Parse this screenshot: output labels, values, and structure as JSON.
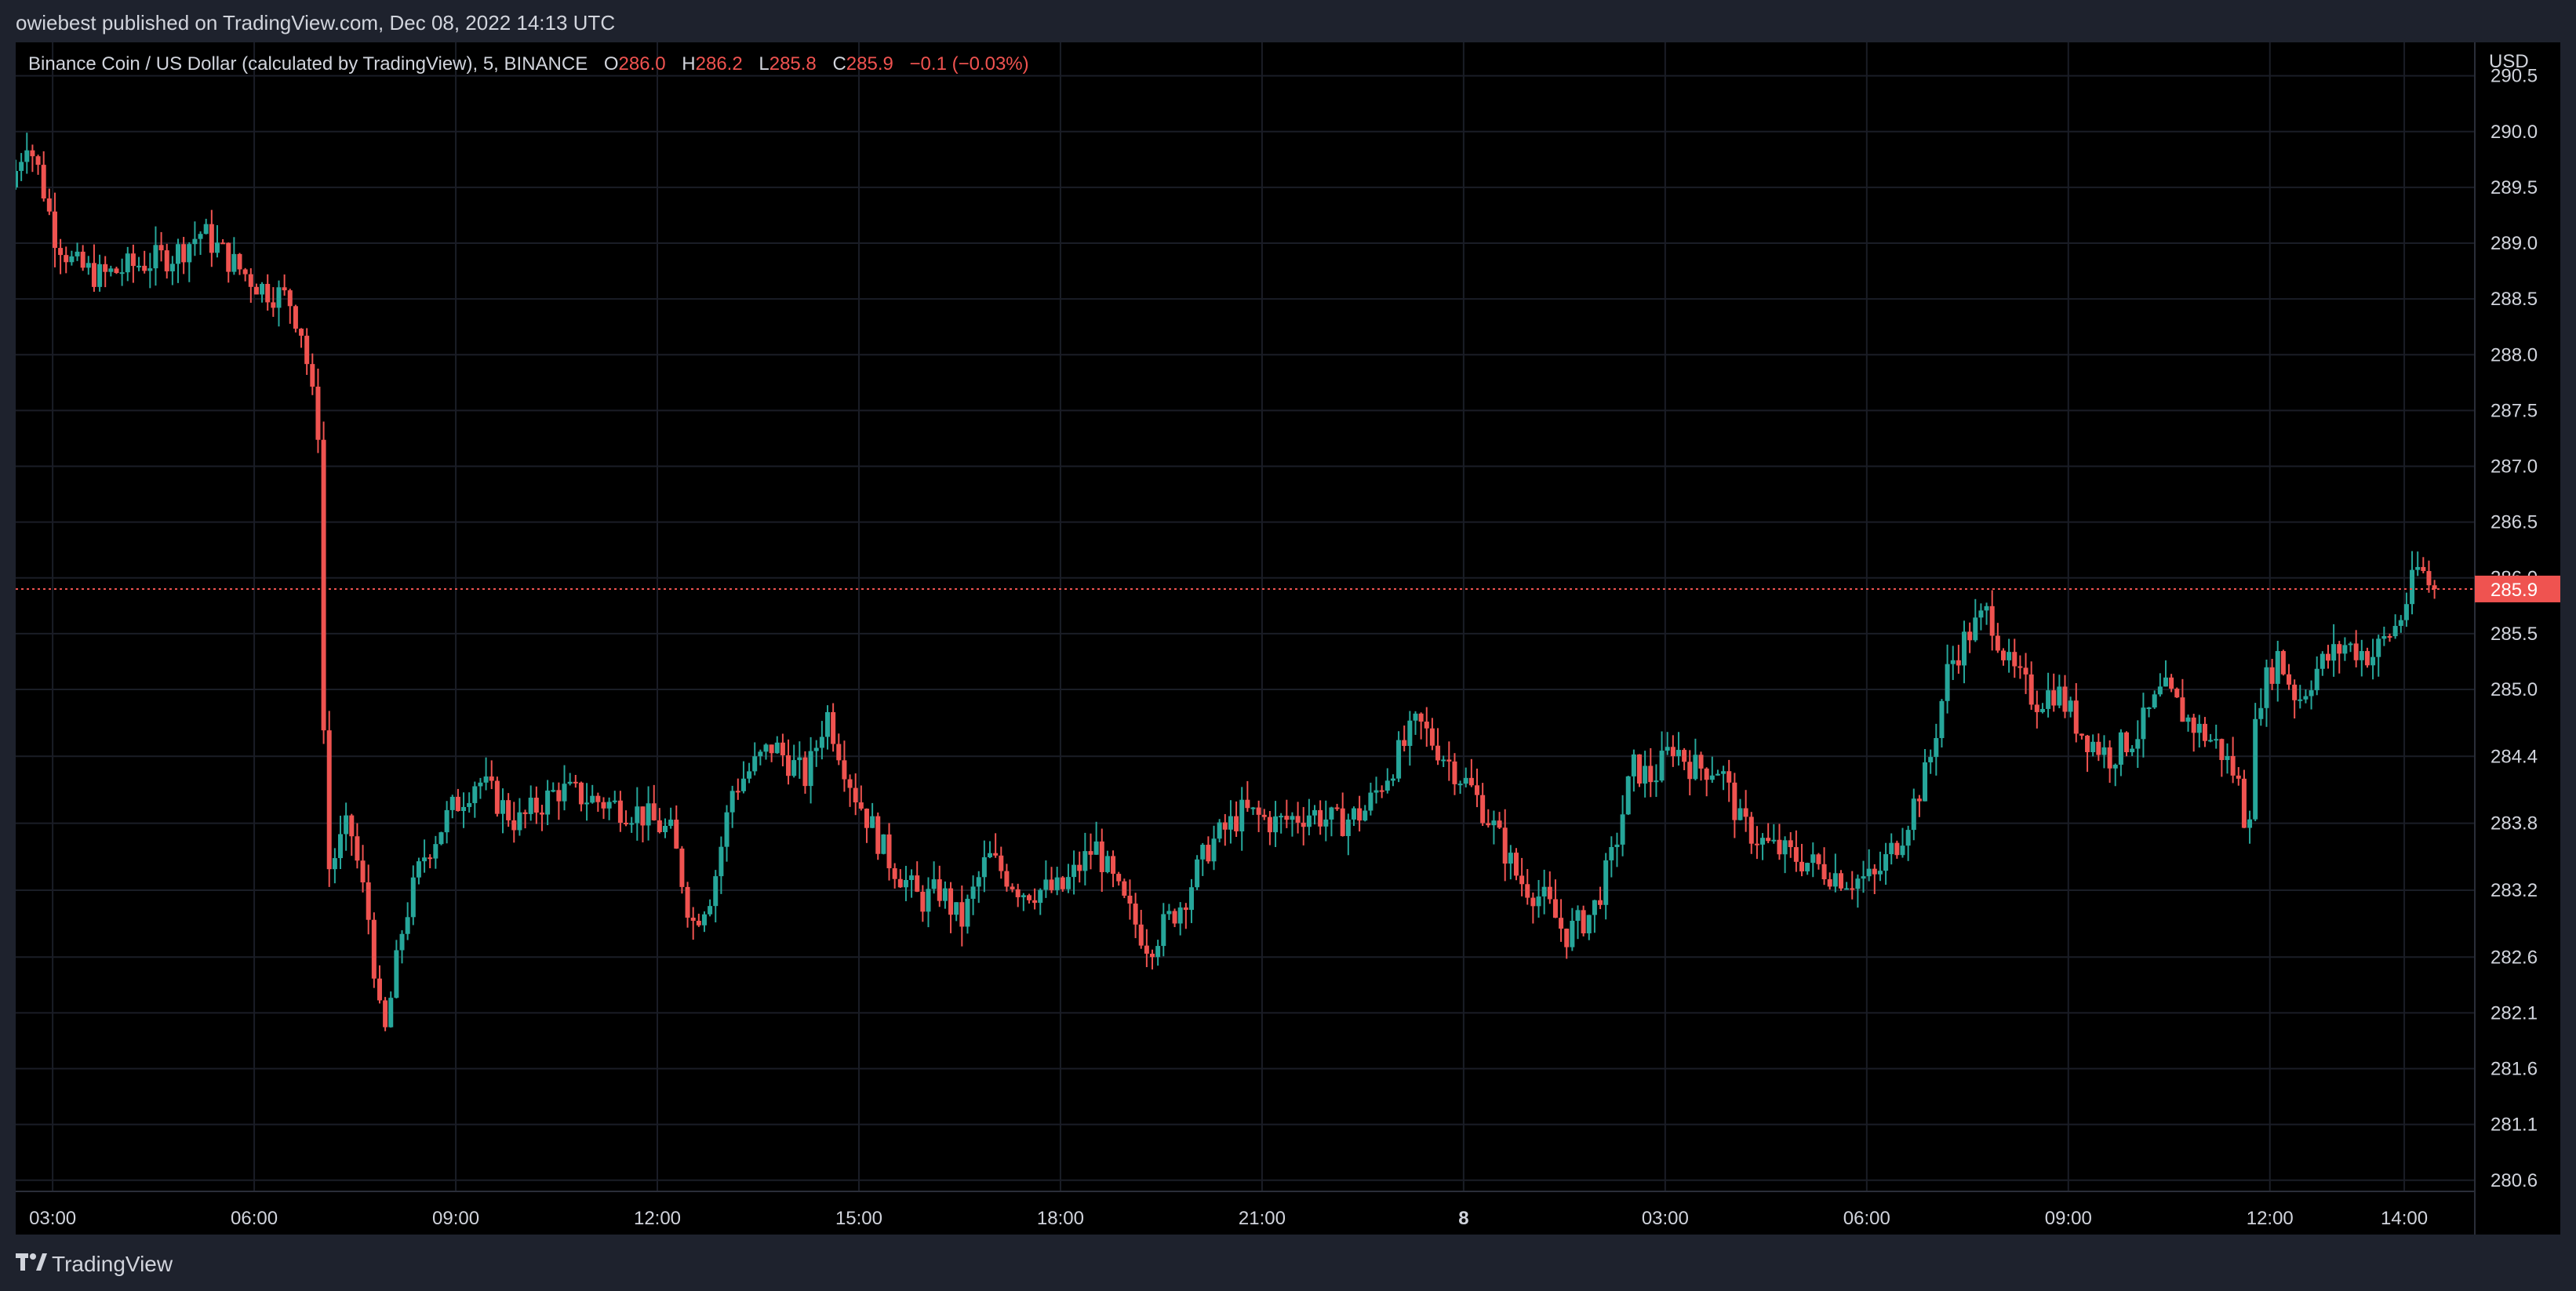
{
  "header": {
    "published_by": "owiebest published on TradingView.com, Dec 08, 2022 14:13 UTC"
  },
  "legend": {
    "symbol": "Binance Coin / US Dollar (calculated by TradingView), 5, BINANCE",
    "open_label": "O",
    "open": "286.0",
    "high_label": "H",
    "high": "286.2",
    "low_label": "L",
    "low": "285.8",
    "close_label": "C",
    "close": "285.9",
    "change": "−0.1 (−0.03%)"
  },
  "footer": {
    "brand": "TradingView"
  },
  "colors": {
    "up": "#26a69a",
    "down": "#ef5350",
    "background": "#000000",
    "frame": "#1e222d",
    "price_line": "#ef5350"
  },
  "chart_data": {
    "type": "candlestick",
    "currency": "USD",
    "last_price": "285.9",
    "ylim": [
      280.5,
      290.8
    ],
    "y_ticks": [
      "290.5",
      "290.0",
      "289.5",
      "289.0",
      "288.5",
      "288.0",
      "287.5",
      "287.0",
      "286.5",
      "286.0",
      "285.5",
      "285.0",
      "284.4",
      "283.8",
      "283.2",
      "282.6",
      "282.1",
      "281.6",
      "281.1",
      "280.6"
    ],
    "x_ticks": [
      "03:00",
      "06:00",
      "09:00",
      "12:00",
      "15:00",
      "18:00",
      "21:00",
      "8",
      "03:00",
      "06:00",
      "09:00",
      "12:00",
      "14:00"
    ],
    "x_tick_times": [
      3,
      6,
      9,
      12,
      15,
      18,
      21,
      24,
      27,
      30,
      33,
      36,
      38
    ],
    "xlim": [
      2.45,
      39.05
    ],
    "grid": true,
    "price_path": [
      [
        2.45,
        289.5
      ],
      [
        2.7,
        289.95
      ],
      [
        2.9,
        289.6
      ],
      [
        3.1,
        289.1
      ],
      [
        3.4,
        288.8
      ],
      [
        3.8,
        288.7
      ],
      [
        4.3,
        288.8
      ],
      [
        4.9,
        288.9
      ],
      [
        5.3,
        289.1
      ],
      [
        5.8,
        288.8
      ],
      [
        6.2,
        288.6
      ],
      [
        6.6,
        288.5
      ],
      [
        6.8,
        288.2
      ],
      [
        6.95,
        287.6
      ],
      [
        7.08,
        287.2
      ],
      [
        7.12,
        284.4
      ],
      [
        7.2,
        283.4
      ],
      [
        7.5,
        283.8
      ],
      [
        7.8,
        282.9
      ],
      [
        8.0,
        281.8
      ],
      [
        8.3,
        282.9
      ],
      [
        8.6,
        283.5
      ],
      [
        9.0,
        283.9
      ],
      [
        9.4,
        284.2
      ],
      [
        10.0,
        283.8
      ],
      [
        10.6,
        284.1
      ],
      [
        11.2,
        284.0
      ],
      [
        11.8,
        283.9
      ],
      [
        12.3,
        283.7
      ],
      [
        12.6,
        282.9
      ],
      [
        12.9,
        283.2
      ],
      [
        13.2,
        284.1
      ],
      [
        13.8,
        284.5
      ],
      [
        14.3,
        284.2
      ],
      [
        14.6,
        284.8
      ],
      [
        15.0,
        284.1
      ],
      [
        15.5,
        283.5
      ],
      [
        16.0,
        283.1
      ],
      [
        16.3,
        283.2
      ],
      [
        16.6,
        282.9
      ],
      [
        17.0,
        283.5
      ],
      [
        17.5,
        283.2
      ],
      [
        18.1,
        283.2
      ],
      [
        18.6,
        283.6
      ],
      [
        19.0,
        283.1
      ],
      [
        19.4,
        282.7
      ],
      [
        19.9,
        283.1
      ],
      [
        20.3,
        283.6
      ],
      [
        20.8,
        283.9
      ],
      [
        21.3,
        283.8
      ],
      [
        21.8,
        283.9
      ],
      [
        22.2,
        283.8
      ],
      [
        22.6,
        283.9
      ],
      [
        23.0,
        284.3
      ],
      [
        23.4,
        284.7
      ],
      [
        23.8,
        284.4
      ],
      [
        24.2,
        284.1
      ],
      [
        24.5,
        283.8
      ],
      [
        24.9,
        283.3
      ],
      [
        25.3,
        283.1
      ],
      [
        25.6,
        282.8
      ],
      [
        26.0,
        283.0
      ],
      [
        26.3,
        283.5
      ],
      [
        26.6,
        284.3
      ],
      [
        26.9,
        284.2
      ],
      [
        27.2,
        284.5
      ],
      [
        27.5,
        284.3
      ],
      [
        27.9,
        284.3
      ],
      [
        28.2,
        283.8
      ],
      [
        28.6,
        283.6
      ],
      [
        29.0,
        283.5
      ],
      [
        29.4,
        283.4
      ],
      [
        29.8,
        283.3
      ],
      [
        30.2,
        283.3
      ],
      [
        30.6,
        283.7
      ],
      [
        31.0,
        284.3
      ],
      [
        31.3,
        285.2
      ],
      [
        31.6,
        285.5
      ],
      [
        31.9,
        285.7
      ],
      [
        32.2,
        285.2
      ],
      [
        32.6,
        284.9
      ],
      [
        32.9,
        285.0
      ],
      [
        33.3,
        284.6
      ],
      [
        33.7,
        284.4
      ],
      [
        34.1,
        284.6
      ],
      [
        34.5,
        285.0
      ],
      [
        34.9,
        284.7
      ],
      [
        35.3,
        284.5
      ],
      [
        35.6,
        284.2
      ],
      [
        35.75,
        283.7
      ],
      [
        35.9,
        284.9
      ],
      [
        36.2,
        285.3
      ],
      [
        36.5,
        284.9
      ],
      [
        36.8,
        285.2
      ],
      [
        37.2,
        285.4
      ],
      [
        37.6,
        285.3
      ],
      [
        38.0,
        285.6
      ],
      [
        38.3,
        286.1
      ],
      [
        38.5,
        285.9
      ]
    ]
  }
}
